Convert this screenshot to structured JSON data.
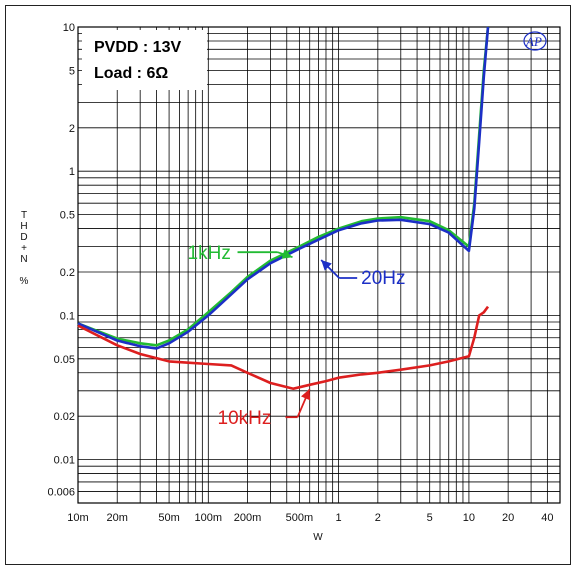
{
  "chart_data": {
    "type": "line",
    "title": "",
    "xlabel": "W",
    "ylabel": "THD+N %",
    "ylabel_chars": [
      "T",
      "H",
      "D",
      "+",
      "N",
      "",
      "%"
    ],
    "xscale": "log",
    "yscale": "log",
    "xlim": [
      0.01,
      50
    ],
    "ylim": [
      0.005,
      10
    ],
    "xticks": [
      {
        "v": 0.01,
        "label": "10m"
      },
      {
        "v": 0.02,
        "label": "20m"
      },
      {
        "v": 0.05,
        "label": "50m"
      },
      {
        "v": 0.1,
        "label": "100m"
      },
      {
        "v": 0.2,
        "label": "200m"
      },
      {
        "v": 0.5,
        "label": "500m"
      },
      {
        "v": 1,
        "label": "1"
      },
      {
        "v": 2,
        "label": "2"
      },
      {
        "v": 5,
        "label": "5"
      },
      {
        "v": 10,
        "label": "10"
      },
      {
        "v": 20,
        "label": "20"
      },
      {
        "v": 40,
        "label": "40"
      }
    ],
    "yticks": [
      {
        "v": 10,
        "label": "10"
      },
      {
        "v": 5,
        "label": "5"
      },
      {
        "v": 2,
        "label": "2"
      },
      {
        "v": 1,
        "label": "1"
      },
      {
        "v": 0.5,
        "label": "0.5"
      },
      {
        "v": 0.2,
        "label": "0.2"
      },
      {
        "v": 0.1,
        "label": "0.1"
      },
      {
        "v": 0.05,
        "label": "0.05"
      },
      {
        "v": 0.02,
        "label": "0.02"
      },
      {
        "v": 0.01,
        "label": "0.01"
      },
      {
        "v": 0.006,
        "label": "0.006"
      }
    ],
    "grid": true,
    "legend": "none",
    "conditions": [
      "PVDD : 13V",
      "Load : 6Ω"
    ],
    "logo": "AP",
    "series": [
      {
        "name": "1kHz",
        "color": "#22bb33",
        "x": [
          0.01,
          0.02,
          0.03,
          0.04,
          0.05,
          0.07,
          0.1,
          0.15,
          0.2,
          0.3,
          0.5,
          0.7,
          1,
          1.5,
          2,
          3,
          5,
          7,
          10,
          11,
          12,
          13,
          14
        ],
        "y": [
          0.088,
          0.069,
          0.064,
          0.062,
          0.067,
          0.08,
          0.105,
          0.145,
          0.185,
          0.24,
          0.3,
          0.35,
          0.4,
          0.45,
          0.47,
          0.48,
          0.45,
          0.39,
          0.3,
          0.6,
          1.8,
          5,
          10
        ]
      },
      {
        "name": "20Hz",
        "color": "#1c2fc6",
        "x": [
          0.01,
          0.02,
          0.03,
          0.04,
          0.05,
          0.07,
          0.1,
          0.15,
          0.2,
          0.3,
          0.5,
          0.7,
          1,
          1.5,
          2,
          3,
          5,
          7,
          10,
          11,
          12,
          13,
          14
        ],
        "y": [
          0.088,
          0.067,
          0.061,
          0.059,
          0.064,
          0.077,
          0.1,
          0.14,
          0.178,
          0.23,
          0.29,
          0.335,
          0.39,
          0.435,
          0.455,
          0.46,
          0.43,
          0.375,
          0.28,
          0.55,
          1.6,
          4.5,
          10
        ]
      },
      {
        "name": "10kHz",
        "color": "#dd1f1f",
        "x": [
          0.01,
          0.02,
          0.03,
          0.05,
          0.07,
          0.1,
          0.15,
          0.2,
          0.3,
          0.45,
          0.6,
          0.8,
          1,
          1.5,
          2,
          3,
          5,
          7,
          10,
          11,
          12,
          13,
          14
        ],
        "y": [
          0.085,
          0.062,
          0.054,
          0.048,
          0.047,
          0.046,
          0.045,
          0.04,
          0.034,
          0.031,
          0.033,
          0.035,
          0.037,
          0.039,
          0.04,
          0.042,
          0.045,
          0.048,
          0.052,
          0.07,
          0.1,
          0.105,
          0.115
        ]
      }
    ],
    "annotations": [
      {
        "text": "1kHz",
        "color": "#22bb33",
        "x": 0.2,
        "y": 0.27
      },
      {
        "text": "20Hz",
        "color": "#1c2fc6",
        "x": 3.3,
        "y": 0.15
      },
      {
        "text": "10kHz",
        "color": "#dd1f1f",
        "x": 0.2,
        "y": 0.02
      }
    ]
  }
}
